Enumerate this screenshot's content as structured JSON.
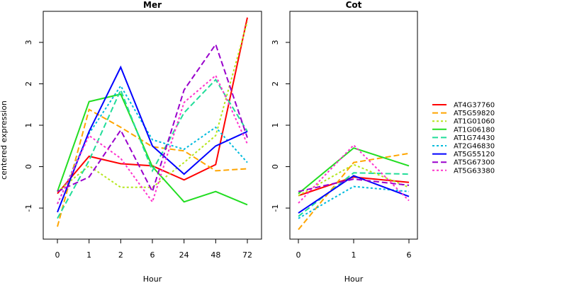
{
  "chart_data": {
    "type": "line",
    "ylabel": "centered expression",
    "ylim": [
      -1.75,
      3.75
    ],
    "yticks": [
      -1,
      0,
      1,
      2,
      3
    ],
    "grid": false,
    "legend_placement": "right",
    "legend": [
      {
        "name": "AT4G37760",
        "color": "#ff0000",
        "dash": "solid"
      },
      {
        "name": "AT5G59820",
        "color": "#ffa500",
        "dash": "dashed"
      },
      {
        "name": "AT1G01060",
        "color": "#b5e61d",
        "dash": "dotted"
      },
      {
        "name": "AT1G06180",
        "color": "#22dd22",
        "dash": "solid"
      },
      {
        "name": "AT1G74430",
        "color": "#22dd99",
        "dash": "dashed"
      },
      {
        "name": "AT2G46830",
        "color": "#00bbdd",
        "dash": "dotted"
      },
      {
        "name": "AT5G55120",
        "color": "#0000ff",
        "dash": "solid"
      },
      {
        "name": "AT5G67300",
        "color": "#9900cc",
        "dash": "dashed"
      },
      {
        "name": "AT5G63380",
        "color": "#ff33cc",
        "dash": "dotted"
      }
    ],
    "panels": [
      {
        "title": "Mer",
        "xlabel": "Hour",
        "categories": [
          "0",
          "1",
          "2",
          "6",
          "24",
          "48",
          "72"
        ],
        "series": [
          {
            "name": "AT4G37760",
            "values": [
              -0.65,
              0.25,
              0.07,
              0.02,
              -0.32,
              0.05,
              3.6
            ]
          },
          {
            "name": "AT5G59820",
            "values": [
              -1.45,
              1.38,
              0.95,
              0.48,
              0.38,
              -0.1,
              -0.05
            ]
          },
          {
            "name": "AT1G01060",
            "values": [
              -0.6,
              0.02,
              -0.5,
              -0.5,
              0.1,
              0.75,
              3.5
            ]
          },
          {
            "name": "AT1G06180",
            "values": [
              -0.6,
              1.57,
              1.75,
              0.0,
              -0.85,
              -0.6,
              -0.92
            ]
          },
          {
            "name": "AT1G74430",
            "values": [
              -1.25,
              0.15,
              1.85,
              -0.1,
              1.3,
              2.1,
              0.85
            ]
          },
          {
            "name": "AT2G46830",
            "values": [
              -0.9,
              0.8,
              1.95,
              0.65,
              0.42,
              0.95,
              0.1
            ]
          },
          {
            "name": "AT5G55120",
            "values": [
              -1.1,
              0.85,
              2.4,
              0.5,
              -0.18,
              0.5,
              0.85
            ]
          },
          {
            "name": "AT5G67300",
            "values": [
              -0.6,
              -0.25,
              0.88,
              -0.6,
              1.85,
              2.95,
              0.7
            ]
          },
          {
            "name": "AT5G63380",
            "values": [
              -0.9,
              0.75,
              0.2,
              -0.85,
              1.55,
              2.2,
              0.55
            ]
          }
        ]
      },
      {
        "title": "Cot",
        "xlabel": "Hour",
        "categories": [
          "0",
          "1",
          "6"
        ],
        "series": [
          {
            "name": "AT4G37760",
            "values": [
              -0.7,
              -0.25,
              -0.38
            ]
          },
          {
            "name": "AT5G59820",
            "values": [
              -1.52,
              0.1,
              0.32
            ]
          },
          {
            "name": "AT1G01060",
            "values": [
              -0.7,
              0.05,
              -0.5
            ]
          },
          {
            "name": "AT1G06180",
            "values": [
              -0.65,
              0.45,
              0.02
            ]
          },
          {
            "name": "AT1G74430",
            "values": [
              -1.2,
              -0.15,
              -0.18
            ]
          },
          {
            "name": "AT2G46830",
            "values": [
              -1.25,
              -0.48,
              -0.6
            ]
          },
          {
            "name": "AT5G55120",
            "values": [
              -1.12,
              -0.22,
              -0.72
            ]
          },
          {
            "name": "AT5G67300",
            "values": [
              -0.6,
              -0.3,
              -0.45
            ]
          },
          {
            "name": "AT5G63380",
            "values": [
              -0.88,
              0.52,
              -0.82
            ]
          }
        ]
      }
    ]
  }
}
